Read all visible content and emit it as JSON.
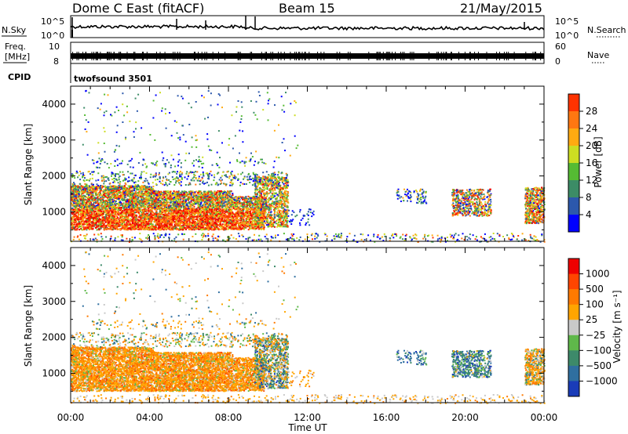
{
  "header": {
    "station": "Dome C East (fitACF)",
    "beam": "Beam 15",
    "date": "21/May/2015"
  },
  "labels": {
    "nsky": "N.Sky",
    "nsearch": "N.Search",
    "freq_top": "Freq.",
    "freq_unit": "[MHz]",
    "nave": "Nave",
    "cpid": "CPID",
    "cpid_value": "twofsound 3501",
    "slant_range": "Slant Range [km]",
    "time_ut": "Time UT",
    "power_label": "Power [dB]",
    "velocity_label": "Velocity [m s⁻¹]"
  },
  "noise_axis": {
    "left": [
      "10^5",
      "10^0"
    ],
    "right": [
      "10^5",
      "10^0"
    ]
  },
  "freq_axis": {
    "left": [
      "10",
      "8"
    ],
    "right": [
      "60",
      "0"
    ]
  },
  "colors": {
    "power_scale": [
      "#0000ff",
      "#2c58ac",
      "#3c8c66",
      "#55bb33",
      "#ccdd22",
      "#ffaa11",
      "#ff7711",
      "#ff3300",
      "#ee0000"
    ],
    "velocity_scale": [
      "#1a3cb8",
      "#2f6fa0",
      "#3d8a6a",
      "#5fb84a",
      "#c9c9c9",
      "#ffa500",
      "#ff7a00",
      "#ff4500",
      "#ee0000"
    ]
  },
  "chart_data": [
    {
      "type": "heatmap",
      "name": "power",
      "xlabel": "Time UT",
      "ylabel": "Slant Range [km]",
      "x_ticks": [
        "00:00",
        "04:00",
        "08:00",
        "12:00",
        "16:00",
        "20:00",
        "00:00"
      ],
      "xlim_hours": [
        0,
        24
      ],
      "y_ticks": [
        1000,
        2000,
        3000,
        4000
      ],
      "ylim_km": [
        180,
        4500
      ],
      "colorbar_label": "Power [dB]",
      "colorbar_ticks": [
        "4",
        "8",
        "12",
        "16",
        "20",
        "24",
        "28"
      ],
      "colorbar_range": [
        0,
        32
      ]
    },
    {
      "type": "heatmap",
      "name": "velocity",
      "xlabel": "Time UT",
      "ylabel": "Slant Range [km]",
      "x_ticks": [
        "00:00",
        "04:00",
        "08:00",
        "12:00",
        "16:00",
        "20:00",
        "00:00"
      ],
      "xlim_hours": [
        0,
        24
      ],
      "y_ticks": [
        1000,
        2000,
        3000,
        4000
      ],
      "ylim_km": [
        180,
        4500
      ],
      "colorbar_label": "Velocity [m s⁻¹]",
      "colorbar_ticks": [
        "1000",
        "500",
        "100",
        "25",
        "−25",
        "−100",
        "−500",
        "−1000"
      ]
    }
  ]
}
